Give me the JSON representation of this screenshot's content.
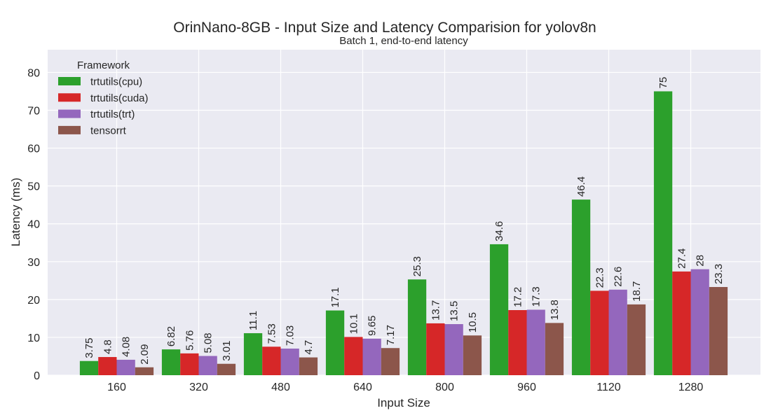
{
  "chart_data": {
    "type": "bar",
    "title": "OrinNano-8GB - Input Size and Latency Comparision for yolov8n",
    "subtitle": "Batch 1, end-to-end latency",
    "xlabel": "Input Size",
    "ylabel": "Latency (ms)",
    "ylim": [
      0,
      86
    ],
    "yticks": [
      0,
      10,
      20,
      30,
      40,
      50,
      60,
      70,
      80
    ],
    "grid": true,
    "legend_title": "Framework",
    "legend_position": "top-left",
    "categories": [
      "160",
      "320",
      "480",
      "640",
      "800",
      "960",
      "1120",
      "1280"
    ],
    "series": [
      {
        "name": "trtutils(cpu)",
        "color": "#2ca02c",
        "values": [
          3.75,
          6.82,
          11.1,
          17.1,
          25.3,
          34.6,
          46.4,
          75
        ],
        "labels": [
          "3.75",
          "6.82",
          "11.1",
          "17.1",
          "25.3",
          "34.6",
          "46.4",
          "75"
        ]
      },
      {
        "name": "trtutils(cuda)",
        "color": "#d62728",
        "values": [
          4.8,
          5.76,
          7.53,
          10.1,
          13.7,
          17.2,
          22.3,
          27.4
        ],
        "labels": [
          "4.8",
          "5.76",
          "7.53",
          "10.1",
          "13.7",
          "17.2",
          "22.3",
          "27.4"
        ]
      },
      {
        "name": "trtutils(trt)",
        "color": "#9467bd",
        "values": [
          4.08,
          5.08,
          7.03,
          9.65,
          13.5,
          17.3,
          22.6,
          28
        ],
        "labels": [
          "4.08",
          "5.08",
          "7.03",
          "9.65",
          "13.5",
          "17.3",
          "22.6",
          "28"
        ]
      },
      {
        "name": "tensorrt",
        "color": "#8c564b",
        "values": [
          2.09,
          3.01,
          4.7,
          7.17,
          10.5,
          13.8,
          18.7,
          23.3
        ],
        "labels": [
          "2.09",
          "3.01",
          "4.7",
          "7.17",
          "10.5",
          "13.8",
          "18.7",
          "23.3"
        ]
      }
    ]
  }
}
